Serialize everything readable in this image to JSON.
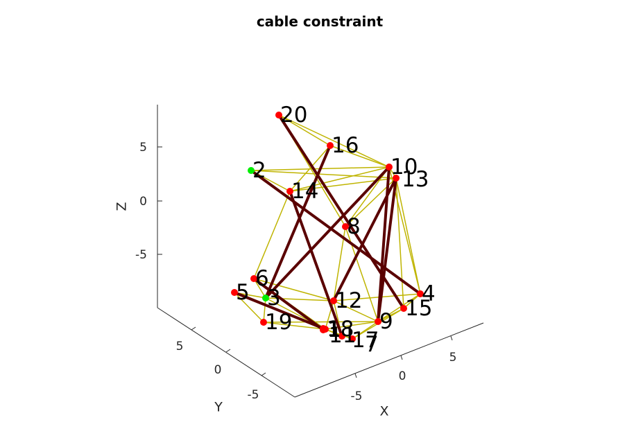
{
  "chart_data": {
    "type": "scatter",
    "subtype": "3d-network",
    "title": "cable constraint",
    "xlabel": "X",
    "ylabel": "Y",
    "zlabel": "Z",
    "x_ticks": [
      "-5",
      "0",
      "5"
    ],
    "y_ticks": [
      "-5",
      "0",
      "5"
    ],
    "z_ticks": [
      "-5",
      "0",
      "5"
    ],
    "colors": {
      "node": "#ff0000",
      "fixed_node": "#00ee00",
      "bar": "#5a0000",
      "cable": "#bfb400",
      "axis": "#262626"
    },
    "nodes": [
      {
        "id": "1",
        "fixed": false
      },
      {
        "id": "2",
        "fixed": true
      },
      {
        "id": "3",
        "fixed": true
      },
      {
        "id": "4",
        "fixed": false
      },
      {
        "id": "5",
        "fixed": false
      },
      {
        "id": "6",
        "fixed": false
      },
      {
        "id": "7",
        "fixed": false
      },
      {
        "id": "8",
        "fixed": false
      },
      {
        "id": "9",
        "fixed": false
      },
      {
        "id": "10",
        "fixed": false
      },
      {
        "id": "11",
        "fixed": false
      },
      {
        "id": "12",
        "fixed": false
      },
      {
        "id": "13",
        "fixed": false
      },
      {
        "id": "14",
        "fixed": false
      },
      {
        "id": "15",
        "fixed": false
      },
      {
        "id": "16",
        "fixed": false
      },
      {
        "id": "17",
        "fixed": false
      },
      {
        "id": "18",
        "fixed": false
      },
      {
        "id": "19",
        "fixed": false
      },
      {
        "id": "20",
        "fixed": false
      }
    ],
    "bars": [
      [
        "20",
        "15"
      ],
      [
        "16",
        "3"
      ],
      [
        "2",
        "4"
      ],
      [
        "14",
        "17"
      ],
      [
        "10",
        "3"
      ],
      [
        "10",
        "9"
      ],
      [
        "13",
        "12"
      ],
      [
        "13",
        "9"
      ],
      [
        "6",
        "11"
      ],
      [
        "5",
        "18"
      ]
    ],
    "cables": [
      [
        "20",
        "16"
      ],
      [
        "20",
        "10"
      ],
      [
        "20",
        "8"
      ],
      [
        "16",
        "10"
      ],
      [
        "16",
        "14"
      ],
      [
        "2",
        "10"
      ],
      [
        "2",
        "13"
      ],
      [
        "2",
        "14"
      ],
      [
        "14",
        "13"
      ],
      [
        "14",
        "10"
      ],
      [
        "10",
        "13"
      ],
      [
        "13",
        "8"
      ],
      [
        "10",
        "8"
      ],
      [
        "13",
        "4"
      ],
      [
        "10",
        "4"
      ],
      [
        "13",
        "15"
      ],
      [
        "8",
        "12"
      ],
      [
        "8",
        "9"
      ],
      [
        "14",
        "6"
      ],
      [
        "6",
        "3"
      ],
      [
        "6",
        "12"
      ],
      [
        "6",
        "18"
      ],
      [
        "5",
        "3"
      ],
      [
        "5",
        "19"
      ],
      [
        "3",
        "12"
      ],
      [
        "3",
        "19"
      ],
      [
        "19",
        "18"
      ],
      [
        "19",
        "9"
      ],
      [
        "12",
        "18"
      ],
      [
        "12",
        "9"
      ],
      [
        "12",
        "4"
      ],
      [
        "9",
        "4"
      ],
      [
        "9",
        "15"
      ],
      [
        "4",
        "15"
      ],
      [
        "18",
        "17"
      ],
      [
        "18",
        "9"
      ],
      [
        "1",
        "7"
      ],
      [
        "7",
        "9"
      ],
      [
        "11",
        "1"
      ],
      [
        "3",
        "18"
      ],
      [
        "15",
        "7"
      ],
      [
        "12",
        "17"
      ]
    ]
  }
}
